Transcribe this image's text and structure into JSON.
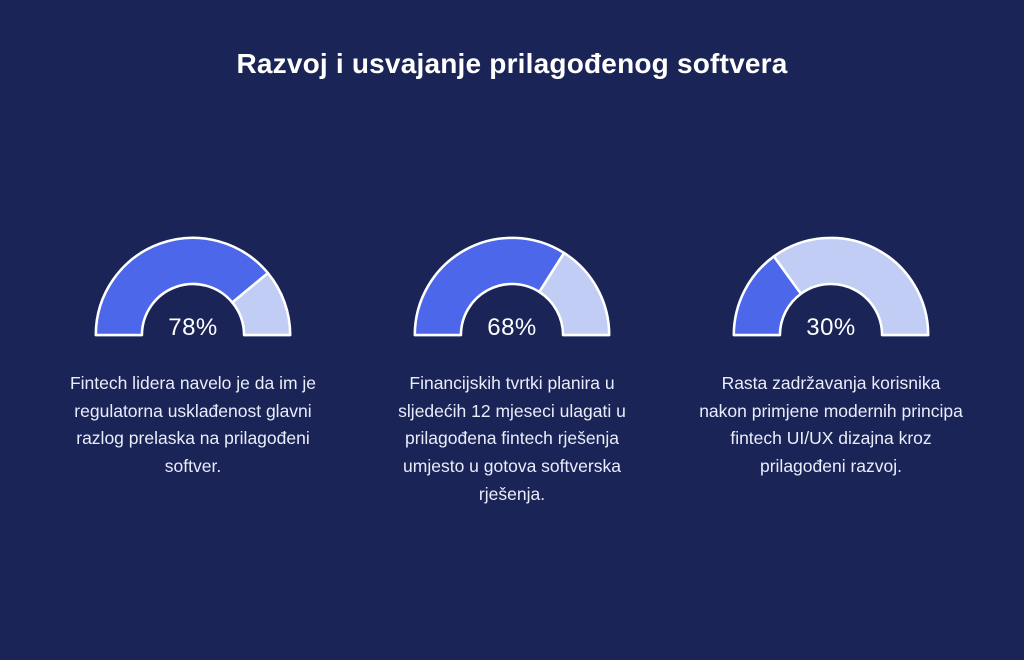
{
  "background_color": "#1b2456",
  "title": "Razvoj i usvajanje prilagođenog softvera",
  "chart_data": {
    "type": "gauge",
    "orientation": "semicircle",
    "colors": {
      "filled": "#4c67e9",
      "unfilled": "#c2cdf6",
      "stroke": "#ffffff",
      "background": "#1b2456"
    },
    "items": [
      {
        "value": 78,
        "label": "78%",
        "description": "Fintech lidera navelo je da im je regulatorna usklađenost glavni razlog prelaska na prilagođeni softver."
      },
      {
        "value": 68,
        "label": "68%",
        "description": "Financijskih tvrtki planira u sljedećih 12 mjeseci ulagati u prilagođena fintech rješenja umjesto u gotova softverska rješenja."
      },
      {
        "value": 30,
        "label": "30%",
        "description": "Rasta zadržavanja korisnika nakon primjene modernih principa fintech UI/UX dizajna kroz prilagođeni razvoj."
      }
    ]
  }
}
